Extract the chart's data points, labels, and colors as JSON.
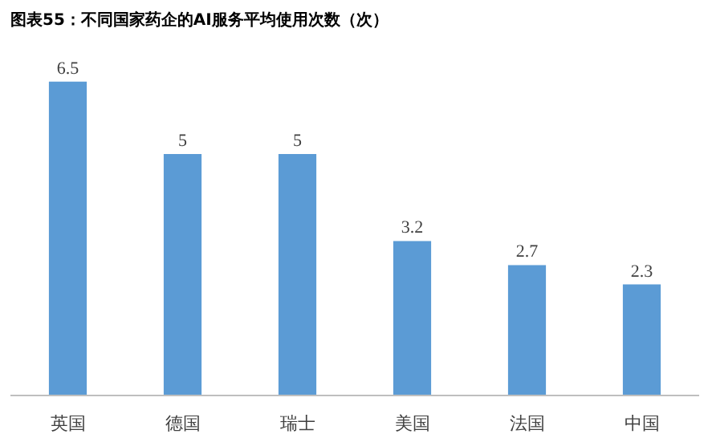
{
  "chart_data": {
    "type": "bar",
    "title": "图表55：不同国家药企的AI服务平均使用次数（次）",
    "categories": [
      "英国",
      "德国",
      "瑞士",
      "美国",
      "法国",
      "中国"
    ],
    "values": [
      6.5,
      5,
      5,
      3.2,
      2.7,
      2.3
    ],
    "color": "#5b9bd5",
    "data_labels": true,
    "grid": false
  }
}
